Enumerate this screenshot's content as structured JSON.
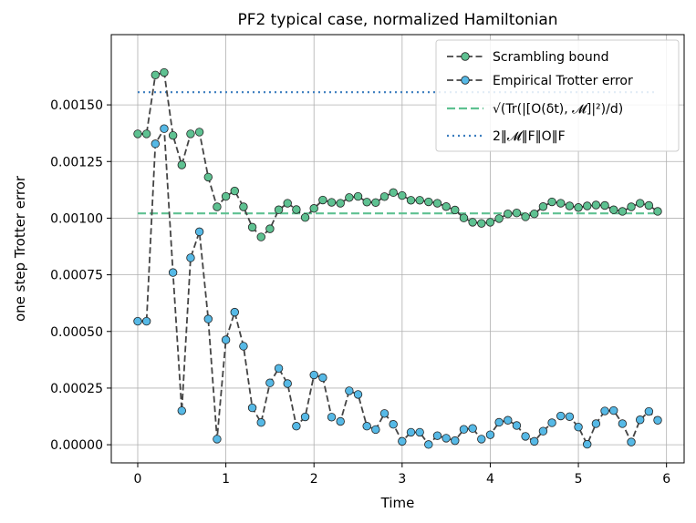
{
  "chart_data": {
    "type": "line",
    "title": "PF2 typical case, normalized Hamiltonian",
    "xlabel": "Time",
    "ylabel": "one step Trotter error",
    "xlim": [
      -0.3,
      6.2
    ],
    "ylim": [
      -8e-05,
      0.00181
    ],
    "xticks": [
      0,
      1,
      2,
      3,
      4,
      5,
      6
    ],
    "xtick_labels": [
      "0",
      "1",
      "2",
      "3",
      "4",
      "5",
      "6"
    ],
    "yticks": [
      0,
      0.00025,
      0.0005,
      0.00075,
      0.001,
      0.00125,
      0.0015
    ],
    "ytick_labels": [
      "0.00000",
      "0.00025",
      "0.00050",
      "0.00075",
      "0.00100",
      "0.00125",
      "0.00150"
    ],
    "grid": true,
    "legend_position": "top-right",
    "x": [
      0.0,
      0.1,
      0.2,
      0.3,
      0.4,
      0.5,
      0.6,
      0.7,
      0.8,
      0.9,
      1.0,
      1.1,
      1.2,
      1.3,
      1.4,
      1.5,
      1.6,
      1.7,
      1.8,
      1.9,
      2.0,
      2.1,
      2.2,
      2.3,
      2.4,
      2.5,
      2.6,
      2.7,
      2.8,
      2.9,
      3.0,
      3.1,
      3.2,
      3.3,
      3.4,
      3.5,
      3.6,
      3.7,
      3.8,
      3.9,
      4.0,
      4.1,
      4.2,
      4.3,
      4.4,
      4.5,
      4.6,
      4.7,
      4.8,
      4.9,
      5.0,
      5.1,
      5.2,
      5.3,
      5.4,
      5.5,
      5.6,
      5.7,
      5.8,
      5.9
    ],
    "series": [
      {
        "name": "Scrambling bound",
        "color": "#5ec191",
        "values": [
          0.001372,
          0.001372,
          0.001632,
          0.001643,
          0.001365,
          0.001235,
          0.001372,
          0.00138,
          0.001181,
          0.00105,
          0.001096,
          0.00112,
          0.00105,
          0.00096,
          0.000917,
          0.000953,
          0.001037,
          0.001066,
          0.001038,
          0.001003,
          0.001043,
          0.00108,
          0.00107,
          0.001066,
          0.001091,
          0.001096,
          0.001071,
          0.001069,
          0.001095,
          0.001113,
          0.0011,
          0.001079,
          0.001079,
          0.001072,
          0.001066,
          0.001051,
          0.001036,
          0.001001,
          0.000982,
          0.000977,
          0.000982,
          0.000998,
          0.001019,
          0.001023,
          0.001006,
          0.001019,
          0.001051,
          0.001072,
          0.001066,
          0.001054,
          0.001047,
          0.001054,
          0.001058,
          0.001056,
          0.001037,
          0.00103,
          0.00105,
          0.001066,
          0.001056,
          0.00103
        ]
      },
      {
        "name": "Empirical Trotter error",
        "color": "#56b9e6",
        "values": [
          0.000545,
          0.000545,
          0.001328,
          0.001395,
          0.00076,
          0.00015,
          0.000825,
          0.00094,
          0.000555,
          2.5e-05,
          0.000463,
          0.000585,
          0.000435,
          0.000163,
          9.8e-05,
          0.000273,
          0.000337,
          0.00027,
          8.2e-05,
          0.000123,
          0.000308,
          0.000296,
          0.000122,
          0.000103,
          0.000238,
          0.000222,
          8.2e-05,
          6.7e-05,
          0.000138,
          9e-05,
          1.5e-05,
          5.5e-05,
          5.5e-05,
          1e-06,
          4e-05,
          2.9e-05,
          1.8e-05,
          6.8e-05,
          7.2e-05,
          2.5e-05,
          4.4e-05,
          9.9e-05,
          0.000108,
          8.5e-05,
          3.7e-05,
          1.5e-05,
          6e-05,
          9.7e-05,
          0.000127,
          0.000124,
          7.8e-05,
          2e-06,
          9.3e-05,
          0.000149,
          0.000151,
          9.3e-05,
          1.2e-05,
          0.00011,
          0.000147,
          0.000108
        ]
      },
      {
        "name": "√(Tr(|[O(δt), 𝓜]|²)/d)",
        "color": "#5ec191",
        "constant": 0.001021
      },
      {
        "name": "2‖𝓜‖F‖O‖F",
        "color": "#3b7dbf",
        "constant": 0.001556
      }
    ],
    "legend": [
      {
        "text": "Scrambling bound",
        "style": "dashed-line-circle"
      },
      {
        "text": "Empirical Trotter error",
        "style": "dashed-line-circle"
      },
      {
        "text": "√(Tr(|[O(δt), 𝓜]|²)/d)",
        "style": "dashed"
      },
      {
        "text": "2‖𝓜‖F‖O‖F",
        "style": "dotted"
      }
    ]
  }
}
